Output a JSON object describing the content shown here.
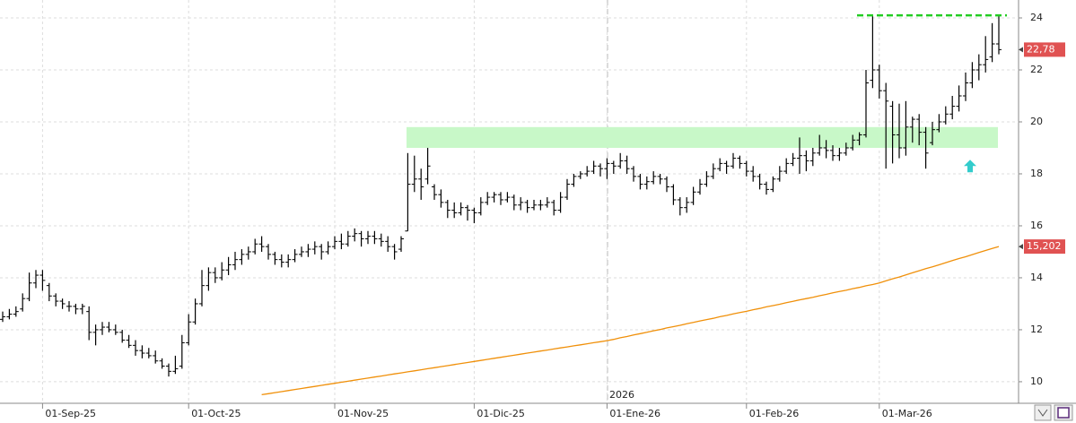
{
  "chart_data": {
    "type": "ohlc",
    "categories": [
      null,
      null,
      null,
      null,
      null,
      null,
      "01-Sep-25",
      null,
      null,
      null,
      null,
      null,
      null,
      null,
      null,
      null,
      null,
      null,
      null,
      null,
      null,
      null,
      null,
      null,
      null,
      null,
      null,
      null,
      "01-Oct-25",
      null,
      null,
      null,
      null,
      null,
      null,
      null,
      null,
      null,
      null,
      null,
      null,
      null,
      null,
      null,
      null,
      null,
      null,
      null,
      null,
      null,
      "01-Nov-25",
      null,
      null,
      null,
      null,
      null,
      null,
      null,
      null,
      null,
      null,
      null,
      null,
      null,
      null,
      null,
      null,
      null,
      null,
      null,
      null,
      "01-Dic-25",
      null,
      null,
      null,
      null,
      null,
      null,
      null,
      null,
      null,
      null,
      null,
      null,
      null,
      null,
      null,
      null,
      null,
      null,
      null,
      "01-Ene-26",
      null,
      null,
      null,
      null,
      null,
      null,
      null,
      null,
      null,
      null,
      null,
      null,
      null,
      null,
      null,
      null,
      null,
      null,
      null,
      null,
      "01-Feb-26",
      null,
      null,
      null,
      null,
      null,
      null,
      null,
      null,
      null,
      null,
      null,
      null,
      null,
      null,
      null,
      null,
      null,
      null,
      null,
      "01-Mar-26",
      null,
      null,
      null,
      null,
      null,
      null,
      null,
      null,
      null,
      null,
      null,
      null,
      null,
      null,
      null,
      null,
      null,
      null
    ],
    "ohlc": [
      [
        12.4,
        12.7,
        12.3,
        12.5
      ],
      [
        12.5,
        12.8,
        12.4,
        12.6
      ],
      [
        12.6,
        12.9,
        12.5,
        12.7
      ],
      [
        12.8,
        13.4,
        12.7,
        13.2
      ],
      [
        13.2,
        14.2,
        13.1,
        13.8
      ],
      [
        13.8,
        14.3,
        13.6,
        14.1
      ],
      [
        14.1,
        14.3,
        13.5,
        13.9
      ],
      [
        13.7,
        13.8,
        13.1,
        13.3
      ],
      [
        13.3,
        13.4,
        12.9,
        13.1
      ],
      [
        13.1,
        13.2,
        12.8,
        13.0
      ],
      [
        12.9,
        13.1,
        12.7,
        12.9
      ],
      [
        12.9,
        13.0,
        12.6,
        12.8
      ],
      [
        12.8,
        13.0,
        12.6,
        12.9
      ],
      [
        12.7,
        12.9,
        11.6,
        11.9
      ],
      [
        11.9,
        12.2,
        11.4,
        12.0
      ],
      [
        12.0,
        12.3,
        11.8,
        12.1
      ],
      [
        12.1,
        12.3,
        11.9,
        12.0
      ],
      [
        12.0,
        12.2,
        11.8,
        11.9
      ],
      [
        11.9,
        12.0,
        11.5,
        11.6
      ],
      [
        11.6,
        11.8,
        11.3,
        11.4
      ],
      [
        11.4,
        11.6,
        11.0,
        11.2
      ],
      [
        11.2,
        11.4,
        10.9,
        11.1
      ],
      [
        11.1,
        11.3,
        10.9,
        11.0
      ],
      [
        11.0,
        11.2,
        10.7,
        10.8
      ],
      [
        10.8,
        10.9,
        10.5,
        10.6
      ],
      [
        10.6,
        10.7,
        10.2,
        10.4
      ],
      [
        10.4,
        11.0,
        10.3,
        10.5
      ],
      [
        10.6,
        11.8,
        10.5,
        11.5
      ],
      [
        11.5,
        12.6,
        11.4,
        12.3
      ],
      [
        12.3,
        13.2,
        12.2,
        13.0
      ],
      [
        13.0,
        14.3,
        12.9,
        13.7
      ],
      [
        13.7,
        14.4,
        13.5,
        14.2
      ],
      [
        14.2,
        14.4,
        13.8,
        14.0
      ],
      [
        14.0,
        14.6,
        13.9,
        14.3
      ],
      [
        14.3,
        14.8,
        14.1,
        14.5
      ],
      [
        14.5,
        15.0,
        14.3,
        14.7
      ],
      [
        14.7,
        15.1,
        14.5,
        14.9
      ],
      [
        14.9,
        15.2,
        14.7,
        15.0
      ],
      [
        15.0,
        15.5,
        14.9,
        15.3
      ],
      [
        15.3,
        15.6,
        15.0,
        15.2
      ],
      [
        15.2,
        15.3,
        14.7,
        14.9
      ],
      [
        14.9,
        15.0,
        14.5,
        14.7
      ],
      [
        14.7,
        14.9,
        14.4,
        14.6
      ],
      [
        14.6,
        14.9,
        14.4,
        14.7
      ],
      [
        14.7,
        15.1,
        14.6,
        14.9
      ],
      [
        14.9,
        15.2,
        14.8,
        15.0
      ],
      [
        15.0,
        15.3,
        14.8,
        15.1
      ],
      [
        15.1,
        15.4,
        14.9,
        15.2
      ],
      [
        15.2,
        15.3,
        14.7,
        15.0
      ],
      [
        15.0,
        15.4,
        14.9,
        15.2
      ],
      [
        15.2,
        15.6,
        15.1,
        15.4
      ],
      [
        15.4,
        15.7,
        15.1,
        15.3
      ],
      [
        15.3,
        15.8,
        15.2,
        15.6
      ],
      [
        15.6,
        15.9,
        15.4,
        15.7
      ],
      [
        15.7,
        15.8,
        15.2,
        15.5
      ],
      [
        15.5,
        15.8,
        15.3,
        15.6
      ],
      [
        15.6,
        15.8,
        15.3,
        15.5
      ],
      [
        15.5,
        15.7,
        15.2,
        15.4
      ],
      [
        15.4,
        15.6,
        15.0,
        15.2
      ],
      [
        15.2,
        15.3,
        14.7,
        15.0
      ],
      [
        15.1,
        15.6,
        15.0,
        15.5
      ],
      [
        15.8,
        18.8,
        15.8,
        17.6
      ],
      [
        17.6,
        18.7,
        17.3,
        17.8
      ],
      [
        17.8,
        18.2,
        17.0,
        17.5
      ],
      [
        17.8,
        19.0,
        17.6,
        18.3
      ],
      [
        17.5,
        17.6,
        17.0,
        17.2
      ],
      [
        17.2,
        17.4,
        16.7,
        16.9
      ],
      [
        16.9,
        17.0,
        16.3,
        16.6
      ],
      [
        16.6,
        16.9,
        16.3,
        16.5
      ],
      [
        16.5,
        16.9,
        16.4,
        16.7
      ],
      [
        16.7,
        16.8,
        16.2,
        16.6
      ],
      [
        16.6,
        16.7,
        16.1,
        16.5
      ],
      [
        16.5,
        17.1,
        16.4,
        16.9
      ],
      [
        16.9,
        17.3,
        16.8,
        17.1
      ],
      [
        17.1,
        17.3,
        16.9,
        17.2
      ],
      [
        17.2,
        17.3,
        16.8,
        17.0
      ],
      [
        17.0,
        17.3,
        16.9,
        17.1
      ],
      [
        17.1,
        17.2,
        16.6,
        16.8
      ],
      [
        16.8,
        17.1,
        16.6,
        16.9
      ],
      [
        16.9,
        17.0,
        16.5,
        16.7
      ],
      [
        16.7,
        17.0,
        16.6,
        16.8
      ],
      [
        16.8,
        17.0,
        16.6,
        16.8
      ],
      [
        16.8,
        17.1,
        16.7,
        16.9
      ],
      [
        16.9,
        17.0,
        16.4,
        16.6
      ],
      [
        16.6,
        17.3,
        16.5,
        17.1
      ],
      [
        17.1,
        17.8,
        17.0,
        17.6
      ],
      [
        17.6,
        18.0,
        17.5,
        17.9
      ],
      [
        17.9,
        18.1,
        17.8,
        18.0
      ],
      [
        18.0,
        18.3,
        17.9,
        18.1
      ],
      [
        18.1,
        18.5,
        18.0,
        18.3
      ],
      [
        18.3,
        18.4,
        17.9,
        18.2
      ],
      [
        18.2,
        18.6,
        17.8,
        18.4
      ],
      [
        18.4,
        18.5,
        18.0,
        18.3
      ],
      [
        18.3,
        18.8,
        18.2,
        18.5
      ],
      [
        18.5,
        18.7,
        18.0,
        18.2
      ],
      [
        18.2,
        18.3,
        17.7,
        17.9
      ],
      [
        17.9,
        18.0,
        17.4,
        17.6
      ],
      [
        17.6,
        17.9,
        17.4,
        17.7
      ],
      [
        17.7,
        18.1,
        17.6,
        17.9
      ],
      [
        17.9,
        18.0,
        17.6,
        17.8
      ],
      [
        17.8,
        17.9,
        17.3,
        17.5
      ],
      [
        17.5,
        17.6,
        16.8,
        17.0
      ],
      [
        17.0,
        17.1,
        16.4,
        16.7
      ],
      [
        16.7,
        17.1,
        16.5,
        16.9
      ],
      [
        16.9,
        17.5,
        16.8,
        17.3
      ],
      [
        17.3,
        17.8,
        17.2,
        17.6
      ],
      [
        17.6,
        18.1,
        17.5,
        17.9
      ],
      [
        17.9,
        18.4,
        17.8,
        18.2
      ],
      [
        18.2,
        18.6,
        18.1,
        18.4
      ],
      [
        18.4,
        18.5,
        18.0,
        18.3
      ],
      [
        18.3,
        18.8,
        18.2,
        18.6
      ],
      [
        18.6,
        18.7,
        18.2,
        18.4
      ],
      [
        18.4,
        18.5,
        17.9,
        18.1
      ],
      [
        18.1,
        18.3,
        17.7,
        17.9
      ],
      [
        17.9,
        18.0,
        17.4,
        17.6
      ],
      [
        17.6,
        17.7,
        17.2,
        17.4
      ],
      [
        17.4,
        17.9,
        17.3,
        17.8
      ],
      [
        17.8,
        18.3,
        17.7,
        18.1
      ],
      [
        18.1,
        18.6,
        18.0,
        18.4
      ],
      [
        18.4,
        18.8,
        18.3,
        18.6
      ],
      [
        18.6,
        19.4,
        18.0,
        18.7
      ],
      [
        18.7,
        18.9,
        18.1,
        18.5
      ],
      [
        18.5,
        19.0,
        18.3,
        18.8
      ],
      [
        18.8,
        19.5,
        18.7,
        19.0
      ],
      [
        19.0,
        19.3,
        18.6,
        18.9
      ],
      [
        18.9,
        19.1,
        18.5,
        18.7
      ],
      [
        18.7,
        19.0,
        18.5,
        18.8
      ],
      [
        18.8,
        19.2,
        18.7,
        19.0
      ],
      [
        19.0,
        19.5,
        18.9,
        19.3
      ],
      [
        19.3,
        19.6,
        19.1,
        19.5
      ],
      [
        19.5,
        22.0,
        19.4,
        21.5
      ],
      [
        21.6,
        24.1,
        21.3,
        22.0
      ],
      [
        22.0,
        22.2,
        20.9,
        21.2
      ],
      [
        21.2,
        21.5,
        18.2,
        20.8
      ],
      [
        20.6,
        20.8,
        18.4,
        19.5
      ],
      [
        19.5,
        20.7,
        18.6,
        19.0
      ],
      [
        19.0,
        20.8,
        18.7,
        19.8
      ],
      [
        19.8,
        20.2,
        19.2,
        20.1
      ],
      [
        20.1,
        20.3,
        19.1,
        19.6
      ],
      [
        19.6,
        19.8,
        18.2,
        18.8
      ],
      [
        19.2,
        20.0,
        19.1,
        19.7
      ],
      [
        19.7,
        20.3,
        19.6,
        20.0
      ],
      [
        20.0,
        20.6,
        19.9,
        20.3
      ],
      [
        20.3,
        21.0,
        20.1,
        20.6
      ],
      [
        20.6,
        21.4,
        20.4,
        21.0
      ],
      [
        21.0,
        21.9,
        20.8,
        21.5
      ],
      [
        21.5,
        22.3,
        21.3,
        22.0
      ],
      [
        22.0,
        22.6,
        21.6,
        22.2
      ],
      [
        22.2,
        23.3,
        21.9,
        22.4
      ],
      [
        22.5,
        23.8,
        22.3,
        23.0
      ],
      [
        23.0,
        24.1,
        22.6,
        22.78
      ]
    ],
    "color": "#000000",
    "ma": {
      "color": "#f0900a",
      "values": [
        null,
        null,
        null,
        null,
        null,
        null,
        null,
        null,
        null,
        null,
        null,
        null,
        null,
        null,
        null,
        null,
        null,
        null,
        null,
        null,
        null,
        null,
        null,
        null,
        null,
        null,
        null,
        null,
        null,
        null,
        null,
        null,
        null,
        null,
        null,
        null,
        null,
        null,
        null,
        9.5,
        9.54,
        9.58,
        9.62,
        9.66,
        9.7,
        9.74,
        9.78,
        9.82,
        9.86,
        9.9,
        9.94,
        9.98,
        10.02,
        10.06,
        10.1,
        10.14,
        10.18,
        10.22,
        10.26,
        10.3,
        10.34,
        10.38,
        10.42,
        10.46,
        10.5,
        10.54,
        10.58,
        10.62,
        10.66,
        10.7,
        10.74,
        10.78,
        10.82,
        10.86,
        10.9,
        10.94,
        10.98,
        11.02,
        11.06,
        11.1,
        11.14,
        11.18,
        11.22,
        11.26,
        11.3,
        11.34,
        11.38,
        11.42,
        11.46,
        11.5,
        11.54,
        11.58,
        11.63,
        11.69,
        11.74,
        11.8,
        11.85,
        11.9,
        11.96,
        12.01,
        12.07,
        12.12,
        12.17,
        12.23,
        12.28,
        12.34,
        12.39,
        12.44,
        12.5,
        12.55,
        12.61,
        12.66,
        12.71,
        12.77,
        12.82,
        12.88,
        12.93,
        12.98,
        13.04,
        13.09,
        13.15,
        13.2,
        13.25,
        13.31,
        13.36,
        13.42,
        13.47,
        13.52,
        13.58,
        13.63,
        13.69,
        13.74,
        13.8,
        13.88,
        13.96,
        14.03,
        14.11,
        14.19,
        14.27,
        14.35,
        14.42,
        14.5,
        14.58,
        14.66,
        14.74,
        14.81,
        14.89,
        14.97,
        15.05,
        15.13,
        15.202
      ]
    },
    "ylim": [
      9.17,
      24.69
    ],
    "yticks": [
      10,
      12,
      14,
      16,
      18,
      20,
      22,
      24
    ],
    "grid": true,
    "year_label": "2026",
    "zone": {
      "low": 19.0,
      "high": 19.8,
      "color": "#c8f8c8"
    },
    "resistance": {
      "value": 24.1,
      "color": "#22cc22"
    },
    "arrow": {
      "value": 18.3,
      "color": "#33cccc"
    },
    "price_labels": [
      {
        "value": 22.78,
        "label": "22,78"
      },
      {
        "value": 15.202,
        "label": "15,202"
      }
    ]
  }
}
